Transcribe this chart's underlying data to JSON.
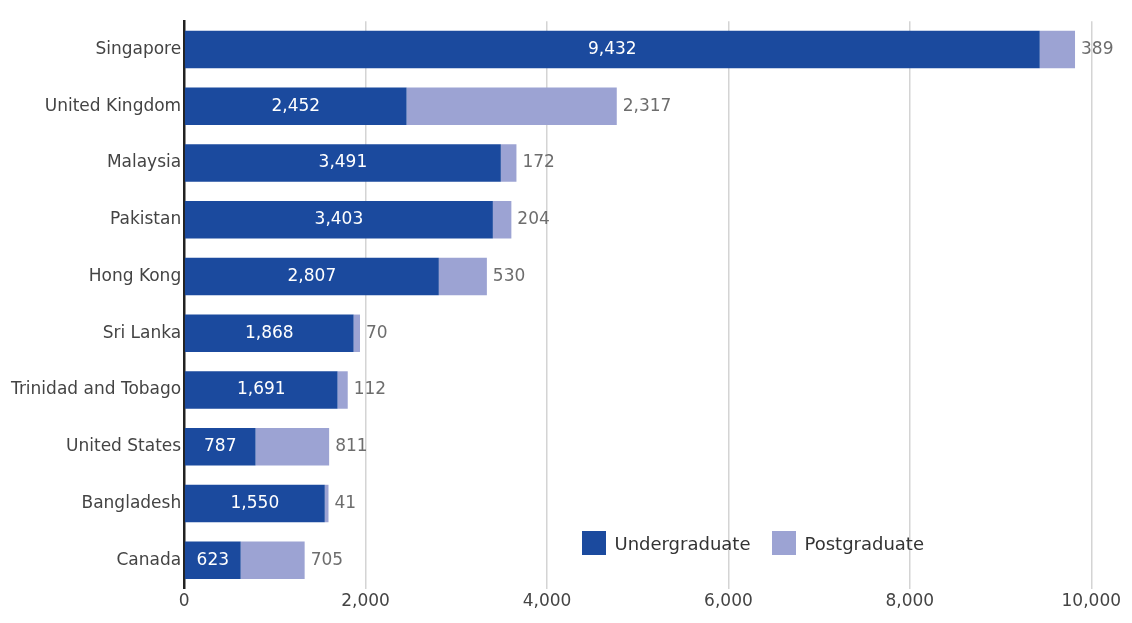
{
  "chart_data": {
    "type": "bar",
    "orientation": "horizontal",
    "stacked": true,
    "categories": [
      "Singapore",
      "United Kingdom",
      "Malaysia",
      "Pakistan",
      "Hong Kong",
      "Sri Lanka",
      "Trinidad and Tobago",
      "United States",
      "Bangladesh",
      "Canada"
    ],
    "series": [
      {
        "name": "Undergraduate",
        "color": "#1b4a9e",
        "values": [
          9432,
          2452,
          3491,
          3403,
          2807,
          1868,
          1691,
          787,
          1550,
          623
        ],
        "value_labels": [
          "9,432",
          "2,452",
          "3,491",
          "3,403",
          "2,807",
          "1,868",
          "1,691",
          "787",
          "1,550",
          "623"
        ]
      },
      {
        "name": "Postgraduate",
        "color": "#9ca3d3",
        "values": [
          389,
          2317,
          172,
          204,
          530,
          70,
          112,
          811,
          41,
          705
        ],
        "value_labels": [
          "389",
          "2,317",
          "172",
          "204",
          "530",
          "70",
          "112",
          "811",
          "41",
          "705"
        ]
      }
    ],
    "xlim": [
      0,
      10000
    ],
    "xticks": [
      0,
      {
        "value": 2000,
        "label": "2,000"
      },
      {
        "value": 4000,
        "label": "4,000"
      },
      {
        "value": 6000,
        "label": "6,000"
      },
      {
        "value": 8000,
        "label": "8,000"
      },
      {
        "value": 10000,
        "label": "10,000"
      }
    ],
    "grid": "x",
    "legend": "bottom right"
  }
}
